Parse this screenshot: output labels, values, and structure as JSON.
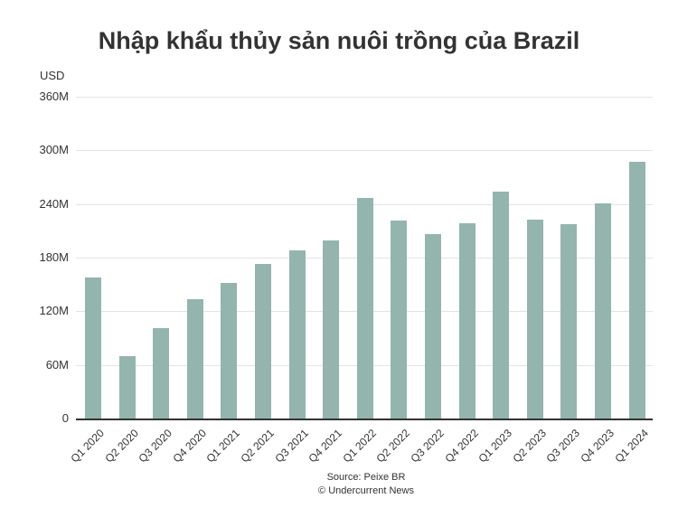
{
  "chart": {
    "title": "Nhập khẩu thủy sản nuôi trồng của Brazil",
    "unit": "USD",
    "source": "Source: Peixe BR",
    "credit": "© Undercurrent News",
    "bar_color": "#93b5ae"
  },
  "chart_data": {
    "type": "bar",
    "title": "Nhập khẩu thủy sản nuôi trồng của Brazil",
    "xlabel": "",
    "ylabel": "USD",
    "categories": [
      "Q1 2020",
      "Q2 2020",
      "Q3 2020",
      "Q4 2020",
      "Q1 2021",
      "Q2 2021",
      "Q3 2021",
      "Q4 2021",
      "Q1 2022",
      "Q2 2022",
      "Q3 2022",
      "Q4 2022",
      "Q1 2023",
      "Q2 2023",
      "Q3 2023",
      "Q4 2023",
      "Q1 2024"
    ],
    "values": [
      158,
      70,
      101,
      133,
      152,
      173,
      188,
      199,
      247,
      221,
      206,
      218,
      254,
      222,
      217,
      241,
      287
    ],
    "value_unit": "million USD",
    "ylim": [
      0,
      360
    ],
    "yticks": [
      "0",
      "60M",
      "120M",
      "180M",
      "240M",
      "300M",
      "360M"
    ],
    "grid": true,
    "legend": null
  }
}
